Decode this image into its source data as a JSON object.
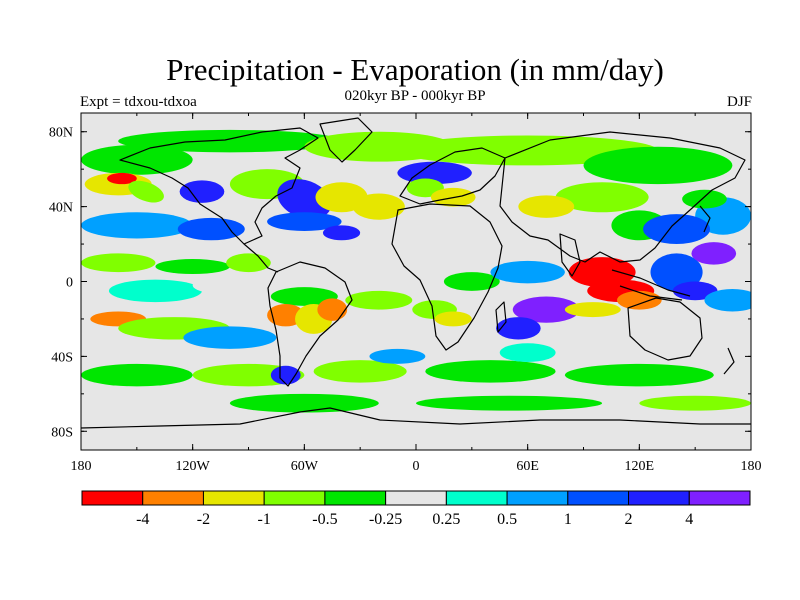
{
  "title": "Precipitation - Evaporation (in mm/day)",
  "subtitle": "020kyr BP - 000kyr BP",
  "left_label": "Expt = tdxou-tdxoa",
  "right_label": "DJF",
  "x_ticks": [
    "180",
    "120W",
    "60W",
    "0",
    "60E",
    "120E",
    "180"
  ],
  "y_ticks": [
    "80N",
    "40N",
    "0",
    "40S",
    "80S"
  ],
  "colorbar": {
    "colors": [
      "#ff0000",
      "#ff8000",
      "#e6e600",
      "#80ff00",
      "#00e600",
      "#e6e6e6",
      "#00ffcc",
      "#00a0ff",
      "#0050ff",
      "#2020ff",
      "#7f20ff"
    ],
    "labels": [
      "-4",
      "-2",
      "-1",
      "-0.5",
      "-0.25",
      "0.25",
      "0.5",
      "1",
      "2",
      "4"
    ]
  },
  "palette": {
    "background": "#e6e6e6",
    "coast": "#000000"
  }
}
